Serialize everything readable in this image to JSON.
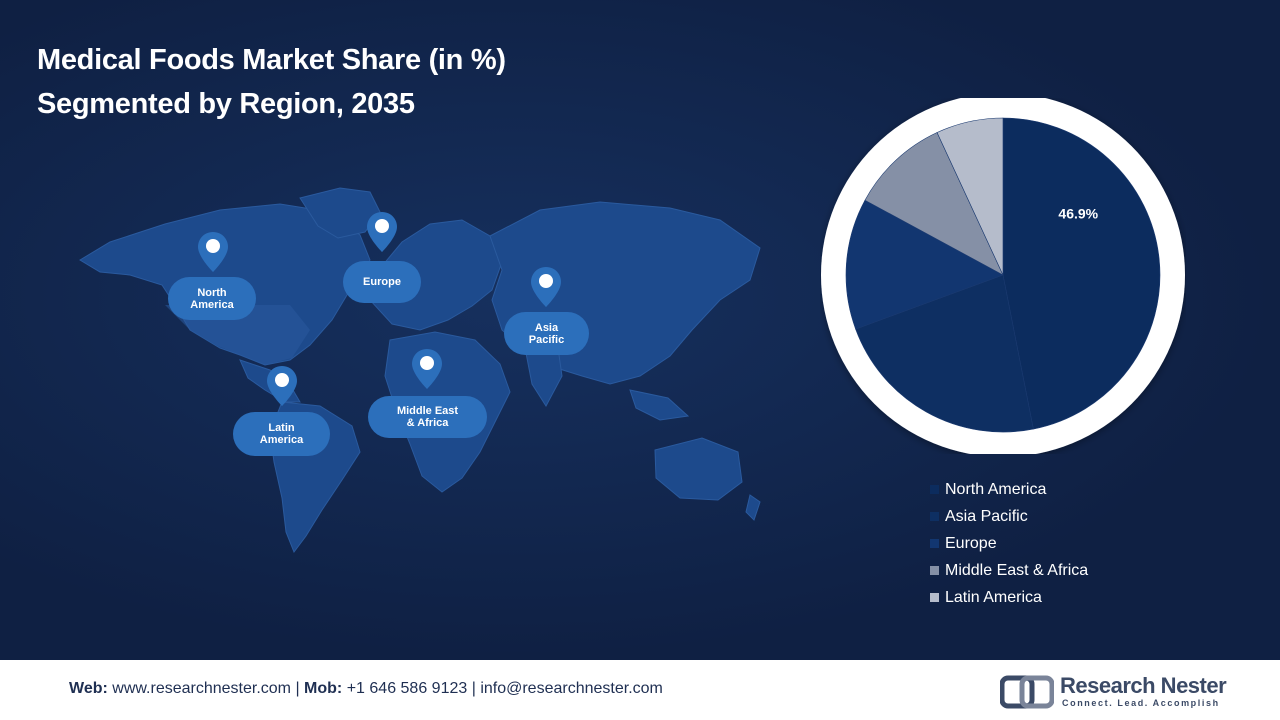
{
  "title": {
    "line1": "Medical Foods Market Share (in %)",
    "line2": "Segmented by Region, 2035"
  },
  "map_labels": [
    {
      "id": "north-america",
      "text": "North\nAmerica"
    },
    {
      "id": "europe",
      "text": "Europe"
    },
    {
      "id": "asia-pacific",
      "text": "Asia\nPacific"
    },
    {
      "id": "latin-america",
      "text": "Latin\nAmerica"
    },
    {
      "id": "middle-east-africa",
      "text": "Middle East\n& Africa"
    }
  ],
  "chart_data": {
    "type": "pie",
    "title": "Medical Foods Market Share (in %) Segmented by Region, 2035",
    "slices": [
      {
        "label": "North America",
        "value": 46.9,
        "color": "#0c2c5e",
        "data_label": "46.9%"
      },
      {
        "label": "Asia Pacific",
        "value": 22.5,
        "color": "#0e2f62"
      },
      {
        "label": "Europe",
        "value": 13.5,
        "color": "#123670"
      },
      {
        "label": "Middle East & Africa",
        "value": 10.2,
        "color": "#8590a6"
      },
      {
        "label": "Latin America",
        "value": 6.9,
        "color": "#b5bccb"
      }
    ],
    "legend_position": "bottom"
  },
  "footer": {
    "web_label": "Web:",
    "web_value": "www.researchnester.com",
    "sep1": " | ",
    "mob_label": "Mob:",
    "mob_value": "+1 646 586 9123",
    "sep2": " | ",
    "email": "info@researchnester.com"
  },
  "logo": {
    "name": "Research Nester",
    "tagline": "Connect. Lead. Accomplish"
  }
}
